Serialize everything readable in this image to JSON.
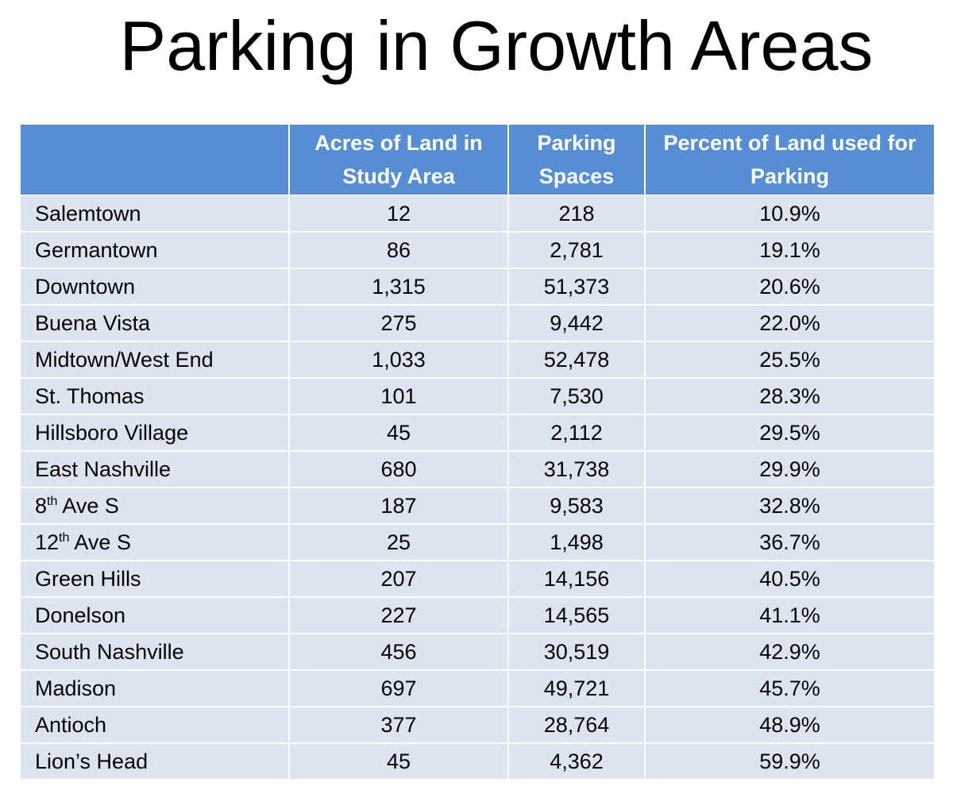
{
  "title": "Parking in Growth Areas",
  "table": {
    "headers": [
      "",
      "Acres of Land in Study Area",
      "Parking Spaces",
      "Percent of Land used for Parking"
    ],
    "rows": [
      {
        "name": "Salemtown",
        "sup": "",
        "suffix": "",
        "acres": "12",
        "spaces": "218",
        "percent": "10.9%"
      },
      {
        "name": "Germantown",
        "sup": "",
        "suffix": "",
        "acres": "86",
        "spaces": "2,781",
        "percent": "19.1%"
      },
      {
        "name": "Downtown",
        "sup": "",
        "suffix": "",
        "acres": "1,315",
        "spaces": "51,373",
        "percent": "20.6%"
      },
      {
        "name": "Buena Vista",
        "sup": "",
        "suffix": "",
        "acres": "275",
        "spaces": "9,442",
        "percent": "22.0%"
      },
      {
        "name": "Midtown/West End",
        "sup": "",
        "suffix": "",
        "acres": "1,033",
        "spaces": "52,478",
        "percent": "25.5%"
      },
      {
        "name": "St. Thomas",
        "sup": "",
        "suffix": "",
        "acres": "101",
        "spaces": "7,530",
        "percent": "28.3%"
      },
      {
        "name": "Hillsboro Village",
        "sup": "",
        "suffix": "",
        "acres": "45",
        "spaces": "2,112",
        "percent": "29.5%"
      },
      {
        "name": "East Nashville",
        "sup": "",
        "suffix": "",
        "acres": "680",
        "spaces": "31,738",
        "percent": "29.9%"
      },
      {
        "name": "8",
        "sup": "th",
        "suffix": " Ave S",
        "acres": "187",
        "spaces": "9,583",
        "percent": "32.8%"
      },
      {
        "name": "12",
        "sup": "th",
        "suffix": " Ave S",
        "acres": "25",
        "spaces": "1,498",
        "percent": "36.7%"
      },
      {
        "name": "Green Hills",
        "sup": "",
        "suffix": "",
        "acres": "207",
        "spaces": "14,156",
        "percent": "40.5%"
      },
      {
        "name": "Donelson",
        "sup": "",
        "suffix": "",
        "acres": "227",
        "spaces": "14,565",
        "percent": "41.1%"
      },
      {
        "name": "South Nashville",
        "sup": "",
        "suffix": "",
        "acres": "456",
        "spaces": "30,519",
        "percent": "42.9%"
      },
      {
        "name": "Madison",
        "sup": "",
        "suffix": "",
        "acres": "697",
        "spaces": "49,721",
        "percent": "45.7%"
      },
      {
        "name": "Antioch",
        "sup": "",
        "suffix": "",
        "acres": "377",
        "spaces": "28,764",
        "percent": "48.9%"
      },
      {
        "name": "Lion’s Head",
        "sup": "",
        "suffix": "",
        "acres": "45",
        "spaces": "4,362",
        "percent": "59.9%"
      }
    ]
  }
}
